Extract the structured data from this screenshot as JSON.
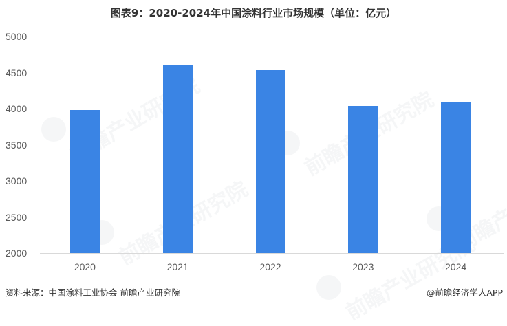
{
  "title": "图表9：2020-2024年中国涂料行业市场规模（单位：亿元）",
  "footer": {
    "source": "资料来源：中国涂料工业协会 前瞻产业研究院",
    "credit": "@前瞻经济学人APP"
  },
  "watermark": "前瞻产业研究院",
  "colors": {
    "bar": "#3a84e4",
    "axis_text": "#595959",
    "baseline": "#d9d9d9"
  },
  "chart_data": {
    "type": "bar",
    "title": "图表9：2020-2024年中国涂料行业市场规模（单位：亿元）",
    "xlabel": "",
    "ylabel": "亿元",
    "categories": [
      "2020",
      "2021",
      "2022",
      "2023",
      "2024"
    ],
    "values": [
      3985,
      4600,
      4530,
      4040,
      4085
    ],
    "ylim": [
      2000,
      5000
    ],
    "yticks": [
      "5000",
      "4500",
      "4000",
      "3500",
      "3000",
      "2500",
      "2000"
    ],
    "grid": false,
    "legend": "none"
  }
}
